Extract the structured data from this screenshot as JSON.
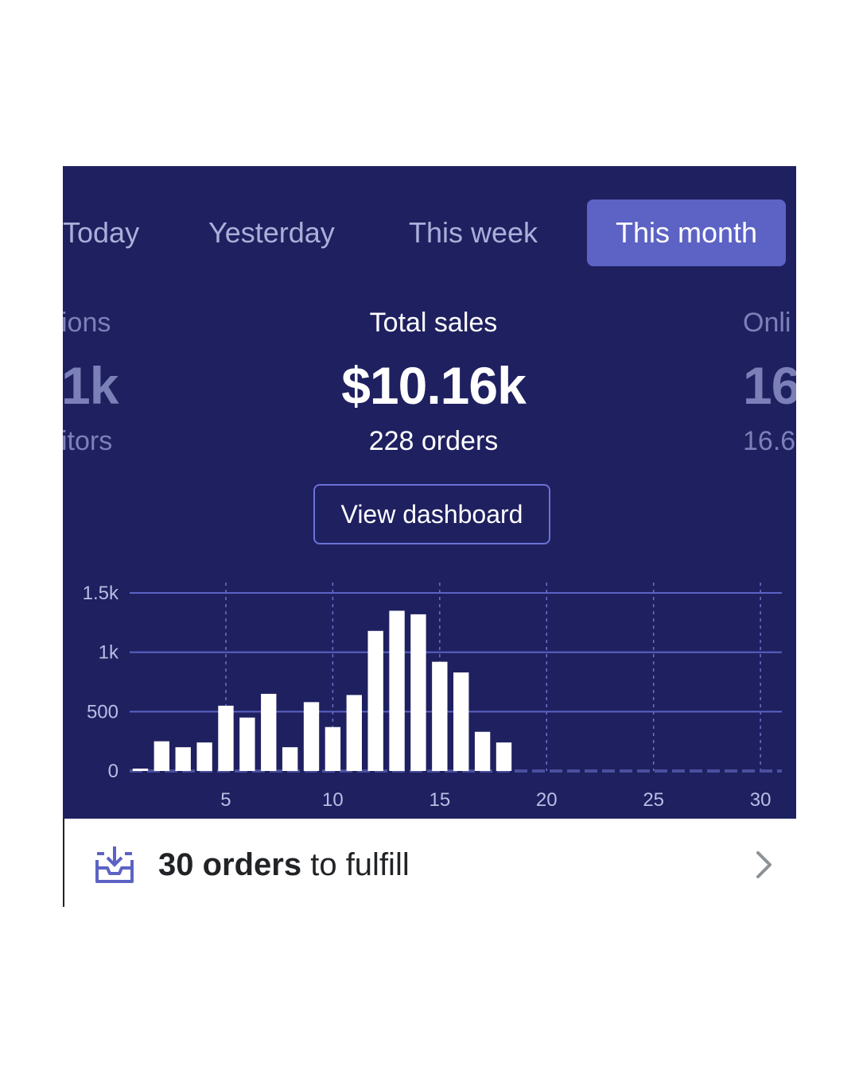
{
  "tabs": [
    {
      "label": "Today"
    },
    {
      "label": "Yesterday"
    },
    {
      "label": "This week"
    },
    {
      "label": "This month",
      "active": true
    }
  ],
  "metrics": {
    "left": {
      "label": "ions",
      "value": "1k",
      "sub": "itors"
    },
    "center": {
      "label": "Total sales",
      "value": "$10.16k",
      "sub": "228 orders"
    },
    "right": {
      "label": "Onli",
      "value": "16",
      "sub": "16.6"
    }
  },
  "dashboard_button": "View dashboard",
  "chart_data": {
    "type": "bar",
    "x": [
      1,
      2,
      3,
      4,
      5,
      6,
      7,
      8,
      9,
      10,
      11,
      12,
      13,
      14,
      15,
      16,
      17,
      18,
      19,
      20,
      21,
      22,
      23,
      24,
      25,
      26,
      27,
      28,
      29,
      30,
      31
    ],
    "values": [
      20,
      250,
      200,
      240,
      550,
      450,
      650,
      200,
      580,
      370,
      640,
      1180,
      1350,
      1320,
      920,
      830,
      330,
      240,
      0,
      0,
      0,
      0,
      0,
      0,
      0,
      0,
      0,
      0,
      0,
      0,
      0
    ],
    "y_ticks": [
      "0",
      "500",
      "1k",
      "1.5k"
    ],
    "y_tick_values": [
      0,
      500,
      1000,
      1500
    ],
    "x_ticks": [
      "5",
      "10",
      "15",
      "20",
      "25",
      "30"
    ],
    "x_tick_values": [
      5,
      10,
      15,
      20,
      25,
      30
    ],
    "ylim": [
      0,
      1500
    ],
    "grid": true
  },
  "footer": {
    "count": "30 orders",
    "text": " to fulfill"
  },
  "colors": {
    "panel": "#1f2060",
    "accent": "#5c63c4",
    "bar": "#ffffff"
  },
  "icons": {
    "fulfill": "inbox-download-icon",
    "chevron": "chevron-right-icon"
  }
}
